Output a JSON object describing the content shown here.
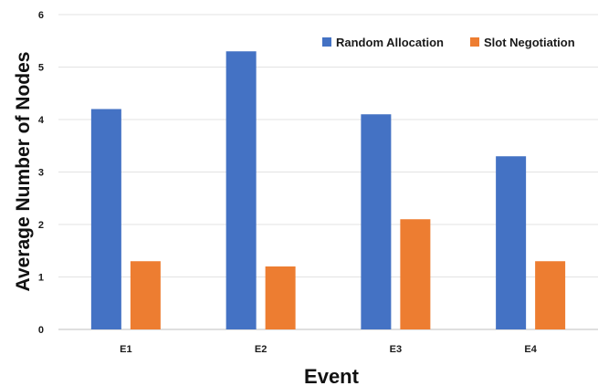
{
  "chart_data": {
    "type": "bar",
    "categories": [
      "E1",
      "E2",
      "E3",
      "E4"
    ],
    "series": [
      {
        "name": "Random Allocation",
        "values": [
          4.2,
          5.3,
          4.1,
          3.3
        ],
        "color": "#4472C4"
      },
      {
        "name": "Slot Negotiation",
        "values": [
          1.3,
          1.2,
          2.1,
          1.3
        ],
        "color": "#ED7D31"
      }
    ],
    "title": "",
    "xlabel": "Event",
    "ylabel": "Average Number of Nodes",
    "ylim": [
      0,
      6
    ],
    "yticks": [
      0,
      1,
      2,
      3,
      4,
      5,
      6
    ],
    "grid": true,
    "legend": "top-right"
  }
}
